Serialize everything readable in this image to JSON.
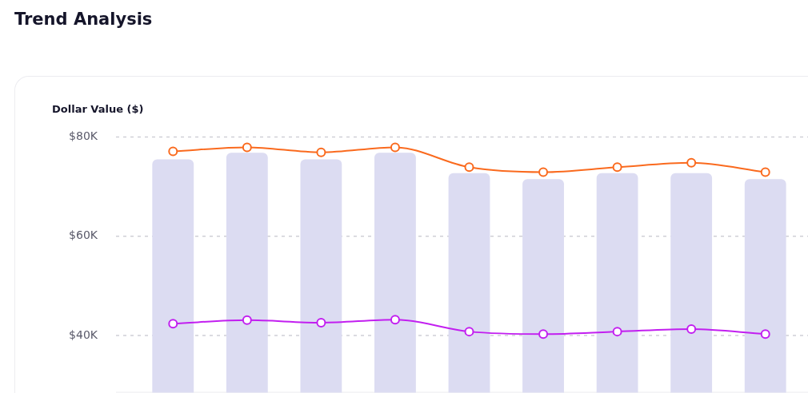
{
  "chart_data": {
    "type": "bar",
    "title": "Trend Analysis",
    "ylabel": "Dollar Value ($)",
    "categories": [
      null,
      null,
      null,
      null,
      null,
      null,
      null,
      null,
      null
    ],
    "series": [
      {
        "type": "bar",
        "color": "#dcdcf2",
        "values": [
          75.5,
          76.8,
          75.5,
          76.8,
          72.7,
          71.5,
          72.7,
          72.7,
          71.5
        ]
      },
      {
        "type": "line",
        "color": "#fa6a1e",
        "values": [
          77.1,
          77.9,
          76.9,
          77.9,
          73.9,
          72.9,
          73.9,
          74.8,
          72.9
        ]
      },
      {
        "type": "line",
        "color": "#c21ff0",
        "values": [
          42.4,
          43.1,
          42.6,
          43.2,
          40.8,
          40.3,
          40.8,
          41.3,
          40.3
        ]
      }
    ],
    "ylim": [
      28.5,
      80
    ],
    "yticks": [
      {
        "value": 40,
        "label": "$40K"
      },
      {
        "value": 60,
        "label": "$60K"
      },
      {
        "value": 80,
        "label": "$80K"
      }
    ],
    "grid": "y",
    "legend": false,
    "marker": "circle",
    "line_style": "solid"
  }
}
